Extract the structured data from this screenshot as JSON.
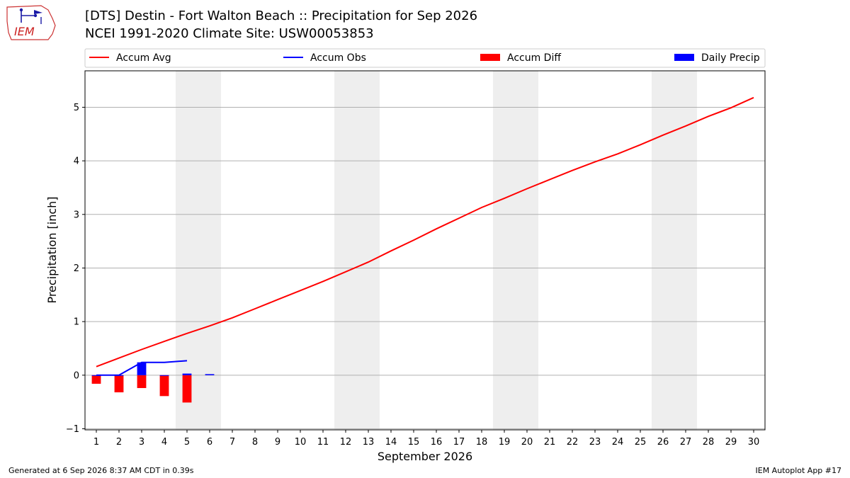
{
  "logo": {
    "text": "IEM"
  },
  "header": {
    "title": "[DTS] Destin - Fort Walton Beach :: Precipitation for Sep 2026",
    "subtitle": "NCEI 1991-2020 Climate Site: USW00053853"
  },
  "footer": {
    "generated": "Generated at 6 Sep 2026 8:37 AM CDT in 0.39s",
    "app": "IEM Autoplot App #17"
  },
  "chart_data": {
    "type": "line",
    "xlabel": "September 2026",
    "ylabel": "Precipitation [inch]",
    "xlim": [
      0.5,
      30.5
    ],
    "ylim": [
      -1.02,
      5.68
    ],
    "yticks": [
      -1,
      0,
      1,
      2,
      3,
      4,
      5
    ],
    "ytick_labels": [
      "−1",
      "0",
      "1",
      "2",
      "3",
      "4",
      "5"
    ],
    "xticks": [
      1,
      2,
      3,
      4,
      5,
      6,
      7,
      8,
      9,
      10,
      11,
      12,
      13,
      14,
      15,
      16,
      17,
      18,
      19,
      20,
      21,
      22,
      23,
      24,
      25,
      26,
      27,
      28,
      29,
      30
    ],
    "grid": "y",
    "legend_position": "top",
    "weekend_bands": [
      [
        4.5,
        6.5
      ],
      [
        11.5,
        13.5
      ],
      [
        18.5,
        20.5
      ],
      [
        25.5,
        27.5
      ]
    ],
    "series": [
      {
        "name": "Accum Avg",
        "kind": "line",
        "color": "#ff0000",
        "x": [
          1,
          2,
          3,
          4,
          5,
          6,
          7,
          8,
          9,
          10,
          11,
          12,
          13,
          14,
          15,
          16,
          17,
          18,
          19,
          20,
          21,
          22,
          23,
          24,
          25,
          26,
          27,
          28,
          29,
          30
        ],
        "values": [
          0.16,
          0.32,
          0.48,
          0.63,
          0.78,
          0.92,
          1.07,
          1.24,
          1.41,
          1.58,
          1.75,
          1.93,
          2.11,
          2.32,
          2.52,
          2.73,
          2.93,
          3.13,
          3.3,
          3.48,
          3.65,
          3.82,
          3.98,
          4.13,
          4.3,
          4.48,
          4.65,
          4.83,
          4.99,
          5.18
        ]
      },
      {
        "name": "Accum Obs",
        "kind": "line",
        "color": "#0000ff",
        "x": [
          1,
          2,
          3,
          4,
          5
        ],
        "values": [
          0.0,
          0.0,
          0.24,
          0.24,
          0.27
        ]
      },
      {
        "name": "Accum Diff",
        "kind": "bar",
        "color": "#ff0000",
        "x": [
          1,
          2,
          3,
          4,
          5
        ],
        "values": [
          -0.16,
          -0.32,
          -0.24,
          -0.39,
          -0.51
        ]
      },
      {
        "name": "Daily Precip",
        "kind": "bar",
        "color": "#0000ff",
        "x": [
          1,
          2,
          3,
          4,
          5,
          6
        ],
        "values": [
          0.0,
          0.0,
          0.24,
          0.0,
          0.03,
          0.02
        ]
      }
    ]
  }
}
